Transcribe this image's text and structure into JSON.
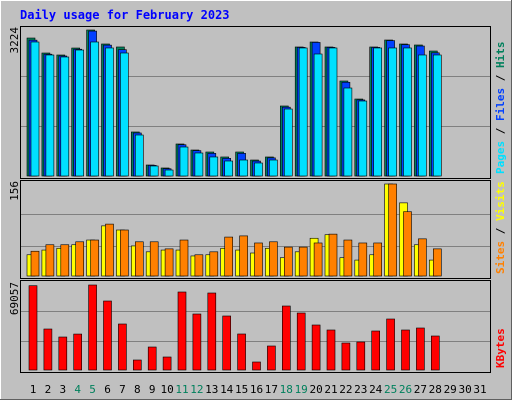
{
  "title": "Daily usage for February 2023",
  "legend_separator": " / ",
  "categories": [
    "1",
    "2",
    "3",
    "4",
    "5",
    "6",
    "7",
    "8",
    "9",
    "10",
    "11",
    "12",
    "13",
    "14",
    "15",
    "16",
    "17",
    "18",
    "19",
    "20",
    "21",
    "22",
    "23",
    "24",
    "25",
    "26",
    "27",
    "28",
    "29",
    "30",
    "31"
  ],
  "category_colors": [
    "#000000",
    "#000000",
    "#000000",
    "#00805c",
    "#00805c",
    "#000000",
    "#000000",
    "#000000",
    "#000000",
    "#000000",
    "#00805c",
    "#00805c",
    "#000000",
    "#000000",
    "#000000",
    "#000000",
    "#000000",
    "#00805c",
    "#00805c",
    "#000000",
    "#000000",
    "#000000",
    "#000000",
    "#000000",
    "#00805c",
    "#00805c",
    "#000000",
    "#000000",
    "#000000",
    "#000000",
    "#000000"
  ],
  "chart_data": [
    {
      "type": "bar",
      "ylim": [
        0,
        3224
      ],
      "yticks": [
        3224
      ],
      "series": [
        {
          "name": "Hits",
          "color": "#00805c",
          "values": [
            3047,
            2716,
            2672,
            2826,
            3224,
            2915,
            2849,
            972,
            243,
            177,
            707,
            574,
            530,
            420,
            530,
            353,
            420,
            1546,
            2849,
            2959,
            2849,
            2098,
            1700,
            2849,
            3003,
            2915,
            2893,
            2760,
            null,
            null,
            null
          ]
        },
        {
          "name": "Files",
          "color": "#0040ff",
          "values": [
            3000,
            2690,
            2650,
            2800,
            3200,
            2890,
            2790,
            950,
            235,
            160,
            690,
            560,
            500,
            390,
            500,
            330,
            400,
            1520,
            2840,
            2950,
            2840,
            2070,
            1680,
            2840,
            2990,
            2900,
            2870,
            2720,
            null,
            null,
            null
          ]
        },
        {
          "name": "Pages",
          "color": "#00e0ff",
          "values": [
            2959,
            2672,
            2628,
            2782,
            2959,
            2827,
            2716,
            905,
            221,
            132,
            640,
            508,
            420,
            331,
            353,
            287,
            353,
            1479,
            2827,
            2694,
            2827,
            1943,
            1656,
            2827,
            2827,
            2827,
            2672,
            2672,
            null,
            null,
            null
          ]
        }
      ]
    },
    {
      "type": "bar",
      "ylim": [
        0,
        156
      ],
      "yticks": [
        156
      ],
      "series": [
        {
          "name": "Visits",
          "color": "#ffff00",
          "values": [
            36,
            44,
            47,
            53,
            61,
            85,
            78,
            51,
            41,
            44,
            44,
            34,
            36,
            47,
            44,
            39,
            47,
            31,
            41,
            64,
            70,
            31,
            27,
            36,
            156,
            124,
            53,
            27,
            null,
            null,
            null
          ]
        },
        {
          "name": "Sites",
          "color": "#ff8000",
          "values": [
            42,
            53,
            53,
            58,
            61,
            88,
            78,
            58,
            58,
            46,
            61,
            36,
            41,
            66,
            68,
            56,
            58,
            49,
            49,
            56,
            71,
            61,
            56,
            56,
            156,
            109,
            63,
            46,
            null,
            null,
            null
          ]
        }
      ]
    },
    {
      "type": "bar",
      "ylim": [
        0,
        69057
      ],
      "yticks": [
        69057
      ],
      "series": [
        {
          "name": "KBytes",
          "color": "#ff0000",
          "values": [
            68500,
            33300,
            26800,
            29200,
            69057,
            56050,
            37370,
            8120,
            18680,
            10560,
            63370,
            45490,
            62550,
            43870,
            29250,
            6500,
            19500,
            51990,
            46300,
            36560,
            32500,
            21930,
            22750,
            31680,
            41430,
            32500,
            34120,
            27620,
            null,
            null,
            null
          ]
        }
      ]
    }
  ]
}
